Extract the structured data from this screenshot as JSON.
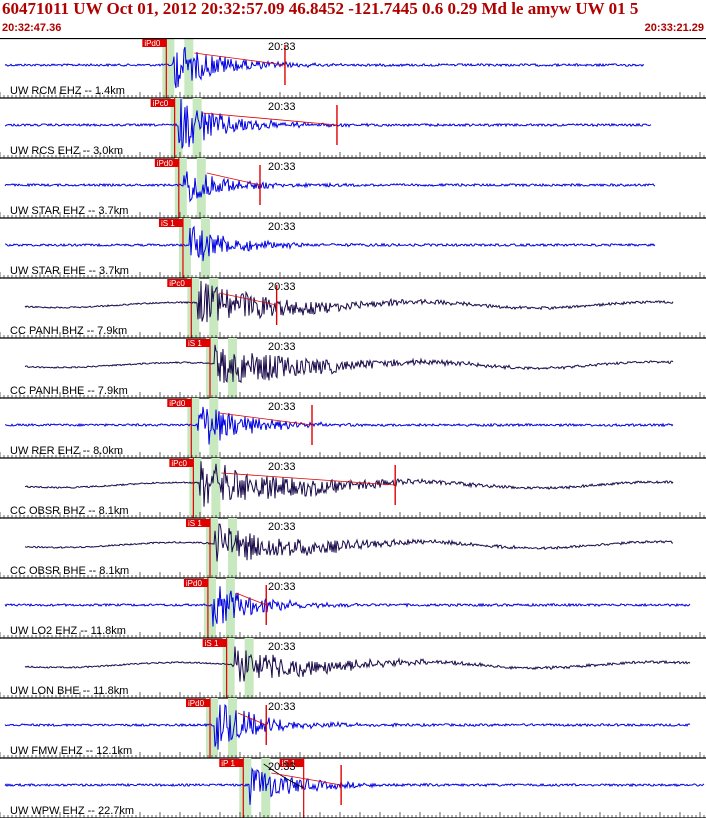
{
  "header": {
    "title": "60471011 UW Oct 01, 2012 20:32:57.09   46.8452 -121.7445  0.6 0.29 Md le amyw UW 01   5",
    "time_start": "20:32:47.36",
    "time_end": "20:33:21.29"
  },
  "colors": {
    "title": "#b00000",
    "trace_ehz": "#0000e0",
    "trace_bh": "#1a0a4a",
    "pick": "#e00000",
    "window": "#c8e8c0"
  },
  "chart_data": {
    "type": "line",
    "title": "",
    "x_range": [
      "20:32:47.36",
      "20:33:21.29"
    ],
    "time_marker": "20:33",
    "traces": [
      {
        "label": "UW RCM EHZ -- 1.4km",
        "component": "EHZ",
        "pick": "iPd0",
        "pick_time": 7.9,
        "wave_start": 8.3,
        "end_mark": 13.7,
        "trace_end": 31.0,
        "amp": 1.0,
        "style": "ehz"
      },
      {
        "label": "UW RCS EHZ -- 3.0km",
        "component": "EHZ",
        "pick": "iPc0",
        "pick_time": 8.3,
        "wave_start": 8.6,
        "end_mark": 16.2,
        "trace_end": 31.3,
        "amp": 1.1,
        "style": "ehz"
      },
      {
        "label": "UW STAR EHZ -- 3.7km",
        "component": "EHZ",
        "pick": "iPd0",
        "pick_time": 8.5,
        "wave_start": 8.8,
        "end_mark": 12.5,
        "trace_end": 31.5,
        "amp": 0.7,
        "style": "ehz"
      },
      {
        "label": "UW STAR EHE -- 3.7km",
        "component": "EHE",
        "pick": "iS 1",
        "pick_time": 8.7,
        "wave_start": 9.1,
        "end_mark": null,
        "trace_end": 31.5,
        "amp": 0.8,
        "style": "ehz"
      },
      {
        "label": "CC PANH BHZ -- 7.9km",
        "component": "BHZ",
        "pick": "iPc0",
        "pick_time": 9.1,
        "wave_start": 9.5,
        "end_mark": 13.3,
        "trace_end": 32.4,
        "amp": 0.9,
        "style": "bh"
      },
      {
        "label": "CC PANH BHE -- 7.9km",
        "component": "BHE",
        "pick": "iS 1",
        "pick_time": 10.0,
        "wave_start": 10.3,
        "end_mark": null,
        "trace_end": 32.4,
        "amp": 0.9,
        "style": "bh"
      },
      {
        "label": "UW RER EHZ -- 8.0km",
        "component": "EHZ",
        "pick": "iPd0",
        "pick_time": 9.1,
        "wave_start": 9.5,
        "end_mark": 15.0,
        "trace_end": 32.4,
        "amp": 1.0,
        "style": "ehz"
      },
      {
        "label": "CC OBSR BHZ -- 8.1km",
        "component": "BHZ",
        "pick": "iPc0",
        "pick_time": 9.2,
        "wave_start": 9.6,
        "end_mark": 19.0,
        "trace_end": 32.4,
        "amp": 1.0,
        "style": "bh"
      },
      {
        "label": "CC OBSR BHE -- 8.1km",
        "component": "BHE",
        "pick": "iS 1",
        "pick_time": 10.0,
        "wave_start": 10.3,
        "end_mark": null,
        "trace_end": 32.4,
        "amp": 0.8,
        "style": "bh"
      },
      {
        "label": "UW LO2 EHZ -- 11.8km",
        "component": "EHZ",
        "pick": "iPd0",
        "pick_time": 9.9,
        "wave_start": 10.2,
        "end_mark": 12.8,
        "trace_end": 33.2,
        "amp": 0.9,
        "style": "ehz"
      },
      {
        "label": "UW LON BHE -- 11.8km",
        "component": "BHE",
        "pick": "iS 1",
        "pick_time": 10.8,
        "wave_start": 11.2,
        "end_mark": null,
        "trace_end": 33.2,
        "amp": 0.7,
        "style": "bh"
      },
      {
        "label": "UW FMW EHZ -- 12.1km",
        "component": "EHZ",
        "pick": "iPd0",
        "pick_time": 10.0,
        "wave_start": 10.3,
        "end_mark": 12.8,
        "trace_end": 33.2,
        "amp": 1.0,
        "style": "ehz"
      },
      {
        "label": "UW WPW EHZ -- 22.7km",
        "component": "EHZ",
        "pick": "iP 1",
        "pick_time": 11.6,
        "wave_start": 12.0,
        "end_mark": 16.4,
        "trace_end": 33.9,
        "amp": 0.8,
        "style": "ehz",
        "second_pick": "iS 1",
        "second_pick_time": 14.6
      }
    ]
  }
}
